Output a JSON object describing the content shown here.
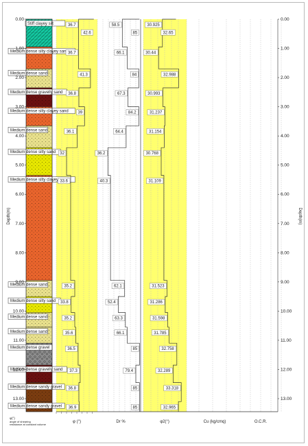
{
  "depth_axis": {
    "label": "Depth(m)",
    "ticks": [
      "0.00",
      "1.00",
      "2.00",
      "3.00",
      "4.00",
      "5.00",
      "6.00",
      "7.00",
      "8.00",
      "9.00",
      "10.00",
      "11.00",
      "12.00",
      "13.00"
    ],
    "max_depth": 13.6
  },
  "layers": [
    {
      "label": "Stiff clayey silt",
      "top": 0.0,
      "bottom": 0.95,
      "color": "#14c8a0",
      "pattern": "hatch"
    },
    {
      "label": "Medium dense silty clayey sand",
      "top": 0.95,
      "bottom": 1.7,
      "color": "#e8642c",
      "pattern": "dots"
    },
    {
      "label": "Medium dense sand",
      "top": 1.7,
      "bottom": 2.35,
      "color": "#e8e08c",
      "pattern": "dots"
    },
    {
      "label": "Medium dense gravelly sand",
      "top": 2.35,
      "bottom": 3.0,
      "color": "#6a1010",
      "pattern": "dots"
    },
    {
      "label": "Medium dense silty clayey sand",
      "top": 3.0,
      "bottom": 3.65,
      "color": "#e8642c",
      "pattern": "dots"
    },
    {
      "label": "Medium dense sand",
      "top": 3.65,
      "bottom": 4.4,
      "color": "#e8e08c",
      "pattern": "dots"
    },
    {
      "label": "Medium dense silty sand",
      "top": 4.4,
      "bottom": 5.35,
      "color": "#e6e600",
      "pattern": "dots"
    },
    {
      "label": "Medium dense silty clayey sand",
      "top": 5.35,
      "bottom": 8.95,
      "color": "#e8642c",
      "pattern": "dots"
    },
    {
      "label": "Medium dense sand",
      "top": 8.95,
      "bottom": 9.5,
      "color": "#e8e08c",
      "pattern": "dots"
    },
    {
      "label": "Medium dense silty sand",
      "top": 9.5,
      "bottom": 10.05,
      "color": "#e6e600",
      "pattern": "dots"
    },
    {
      "label": "Medium dense sand",
      "top": 10.05,
      "bottom": 10.55,
      "color": "#e8e08c",
      "pattern": "dots"
    },
    {
      "label": "Medium dense sand",
      "top": 10.55,
      "bottom": 11.1,
      "color": "#e8e08c",
      "pattern": "dots"
    },
    {
      "label": "Medium dense gravel",
      "top": 11.1,
      "bottom": 11.85,
      "color": "#8c8c8c",
      "pattern": "gravel"
    },
    {
      "label": "Medium dense gravelly sand",
      "top": 11.85,
      "bottom": 12.45,
      "color": "#6a1010",
      "pattern": "dots"
    },
    {
      "label": "Medium dense sandy gravel",
      "top": 12.45,
      "bottom": 13.1,
      "color": "#7a3c10",
      "pattern": "dots"
    },
    {
      "label": "Medium dense sandy gravel",
      "top": 13.1,
      "bottom": 13.6,
      "color": "#7a3c10",
      "pattern": "dots"
    }
  ],
  "columns": [
    {
      "key": "phi",
      "label": "φ (°)"
    },
    {
      "key": "dr",
      "label": "Dr %"
    },
    {
      "key": "phi2",
      "label": "φ2(°)"
    },
    {
      "key": "cu",
      "label": "Cu (kg/cmq)"
    },
    {
      "key": "ocr",
      "label": "O.C.R."
    }
  ],
  "phi_profile": {
    "top_value": "42.6",
    "values": [
      {
        "label": "36.7"
      },
      {
        "label": "36.7"
      },
      {
        "label": "41.3"
      },
      {
        "label": "36.8"
      },
      {
        "label": "39"
      },
      {
        "label": "36.1"
      },
      {
        "label": "32"
      },
      {
        "label": "33.6"
      },
      {
        "label": "35.2"
      },
      {
        "label": "33.8"
      },
      {
        "label": "35.2"
      },
      {
        "label": "35.6"
      },
      {
        "label": "36.5"
      },
      {
        "label": "37.3"
      },
      {
        "label": "36.8"
      },
      {
        "label": "36.9"
      }
    ]
  },
  "dr_profile": {
    "top_value": "85",
    "values": [
      {
        "label": "58.5"
      },
      {
        "label": "66.1"
      },
      {
        "label": "84"
      },
      {
        "label": "67.3"
      },
      {
        "label": "84.2"
      },
      {
        "label": "64.4"
      },
      {
        "label": "36.2"
      },
      {
        "label": "40.3"
      },
      {
        "label": "62.1"
      },
      {
        "label": "52.4"
      },
      {
        "label": "63.3"
      },
      {
        "label": "66.1"
      },
      {
        "label": "85"
      },
      {
        "label": "79.4"
      },
      {
        "label": "85"
      },
      {
        "label": "85"
      }
    ]
  },
  "phi2_profile": {
    "top_value": "32.65",
    "values": [
      {
        "label": "30.925"
      },
      {
        "label": "30.44"
      },
      {
        "label": "32.988"
      },
      {
        "label": "30.993"
      },
      {
        "label": "31.237"
      },
      {
        "label": "31.154"
      },
      {
        "label": "30.768"
      },
      {
        "label": "31.109"
      },
      {
        "label": "31.523"
      },
      {
        "label": "31.286"
      },
      {
        "label": "31.598"
      },
      {
        "label": "31.785"
      },
      {
        "label": "32.758"
      },
      {
        "label": "32.289"
      },
      {
        "label": "33.318"
      },
      {
        "label": "32.965"
      }
    ]
  },
  "legend_note": {
    "line1": "φ(°)",
    "line2": "angle of shearing",
    "line3": "resistance at constant volume"
  }
}
